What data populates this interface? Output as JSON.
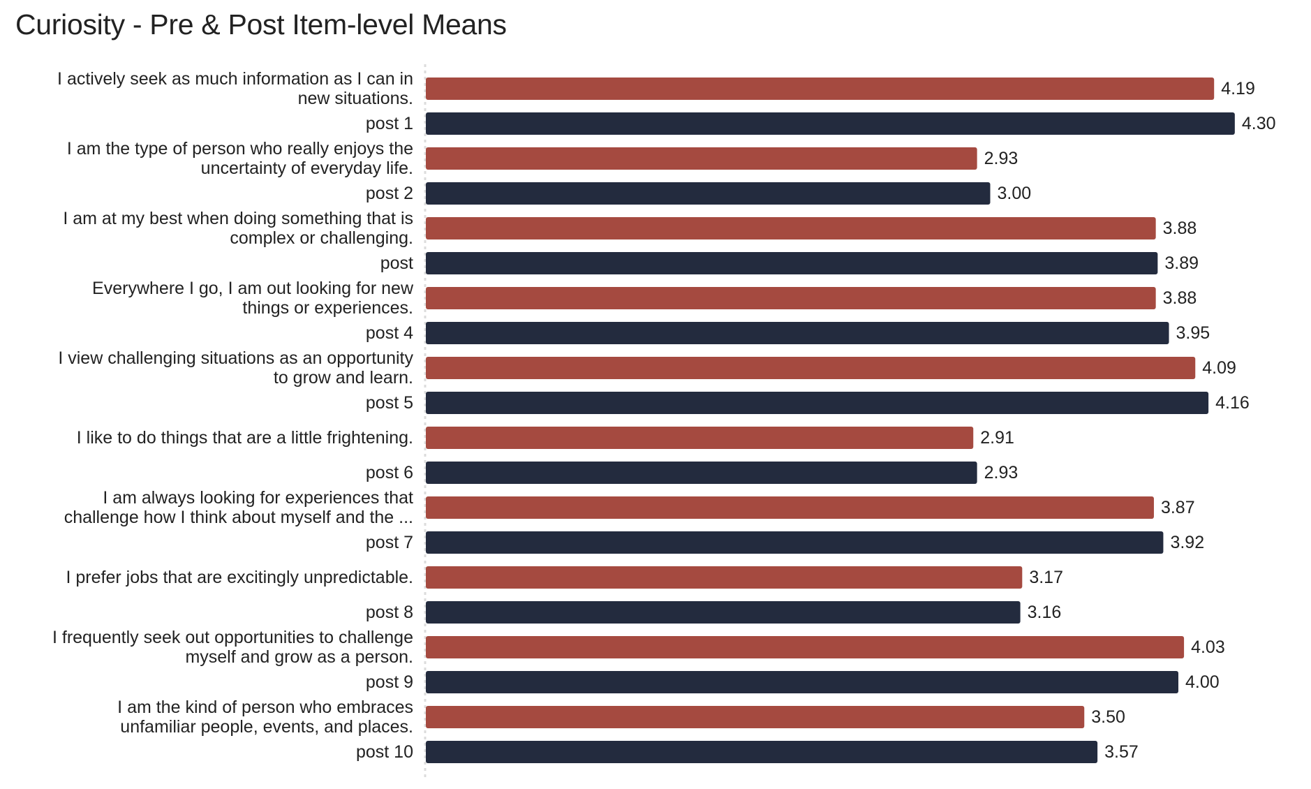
{
  "chart_data": {
    "type": "bar",
    "orientation": "horizontal",
    "title": "Curiosity - Pre & Post Item-level Means",
    "xlabel": "",
    "ylabel": "",
    "xlim": [
      0,
      4.3
    ],
    "grid": false,
    "legend": "none",
    "colors": {
      "pre": "#a54a40",
      "post": "#232b3e",
      "axis": "#dcdcdc",
      "text": "#222222"
    },
    "categories": [
      "I actively seek as much information as I can in new situations.",
      "post 1",
      "I am the type of person who really enjoys the uncertainty of everyday life.",
      "post 2",
      "I am at my best when doing something that is complex or challenging.",
      "post",
      "Everywhere I go, I am out looking for new things or experiences.",
      "post 4",
      "I view challenging situations as an opportunity to grow and learn.",
      "post 5",
      "I like to do things that are a little frightening.",
      "post 6",
      "I am always looking for experiences that challenge how I think about myself and the ...",
      "post 7",
      "I prefer jobs that are excitingly unpredictable.",
      "post 8",
      "I frequently seek out opportunities to challenge myself and grow as a person.",
      "post 9",
      "I am the kind of person who embraces unfamiliar people, events, and places.",
      "post 10"
    ],
    "label_lines": [
      [
        "I actively seek as much information as I can in",
        "new situations."
      ],
      [
        "post 1"
      ],
      [
        "I am the type of person who really enjoys the",
        "uncertainty of everyday life."
      ],
      [
        "post 2"
      ],
      [
        "I am at my best when doing something that is",
        "complex or challenging."
      ],
      [
        "post"
      ],
      [
        "Everywhere I go, I am out looking for new",
        "things or experiences."
      ],
      [
        "post 4"
      ],
      [
        "I view challenging situations as an opportunity",
        "to grow and learn."
      ],
      [
        "post 5"
      ],
      [
        "I like to do things that are a little frightening."
      ],
      [
        "post 6"
      ],
      [
        "I am always looking for experiences that",
        "challenge how I think about myself and the ..."
      ],
      [
        "post 7"
      ],
      [
        "I prefer jobs that are excitingly unpredictable."
      ],
      [
        "post 8"
      ],
      [
        "I frequently seek out opportunities to challenge",
        "myself and grow as a person."
      ],
      [
        "post 9"
      ],
      [
        "I am the kind of person who embraces",
        "unfamiliar people, events, and places."
      ],
      [
        "post 10"
      ]
    ],
    "series_type": [
      "pre",
      "post",
      "pre",
      "post",
      "pre",
      "post",
      "pre",
      "post",
      "pre",
      "post",
      "pre",
      "post",
      "pre",
      "post",
      "pre",
      "post",
      "pre",
      "post",
      "pre",
      "post"
    ],
    "values": [
      4.19,
      4.3,
      2.93,
      3.0,
      3.88,
      3.89,
      3.88,
      3.95,
      4.09,
      4.16,
      2.91,
      2.93,
      3.87,
      3.92,
      3.17,
      3.16,
      4.03,
      4.0,
      3.5,
      3.57
    ],
    "value_labels": [
      "4.19",
      "4.30",
      "2.93",
      "3.00",
      "3.88",
      "3.89",
      "3.88",
      "3.95",
      "4.09",
      "4.16",
      "2.91",
      "2.93",
      "3.87",
      "3.92",
      "3.17",
      "3.16",
      "4.03",
      "4.00",
      "3.50",
      "3.57"
    ]
  }
}
